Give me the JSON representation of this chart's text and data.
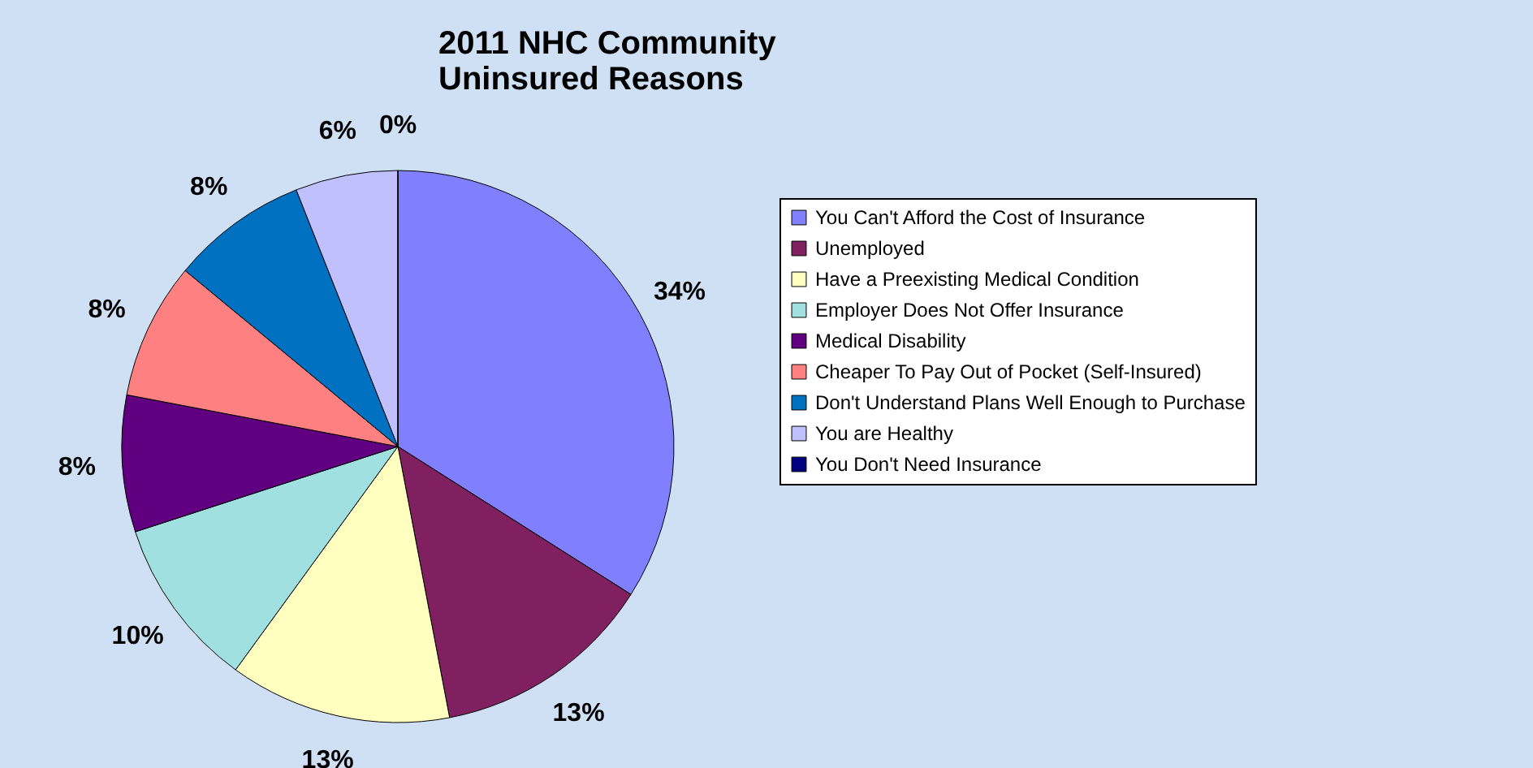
{
  "chart_data": {
    "type": "pie",
    "title": [
      "2011 NHC Community",
      "Uninsured Reasons"
    ],
    "categories": [
      "You Can't Afford the Cost of Insurance",
      "Unemployed",
      "Have a Preexisting Medical Condition",
      "Employer Does Not Offer Insurance",
      "Medical Disability",
      "Cheaper To Pay Out of Pocket (Self-Insured)",
      "Don't Understand Plans Well Enough to Purchase",
      "You are Healthy",
      "You Don't Need Insurance"
    ],
    "values": [
      34,
      13,
      13,
      10,
      8,
      8,
      8,
      6,
      0
    ],
    "value_labels": [
      "34%",
      "13%",
      "13%",
      "10%",
      "8%",
      "8%",
      "8%",
      "6%",
      "0%"
    ],
    "colors": [
      "#8080ff",
      "#802060",
      "#ffffc0",
      "#a0e0e0",
      "#600080",
      "#ff8080",
      "#0070c0",
      "#c0c0ff",
      "#000080"
    ],
    "legend": "right"
  }
}
